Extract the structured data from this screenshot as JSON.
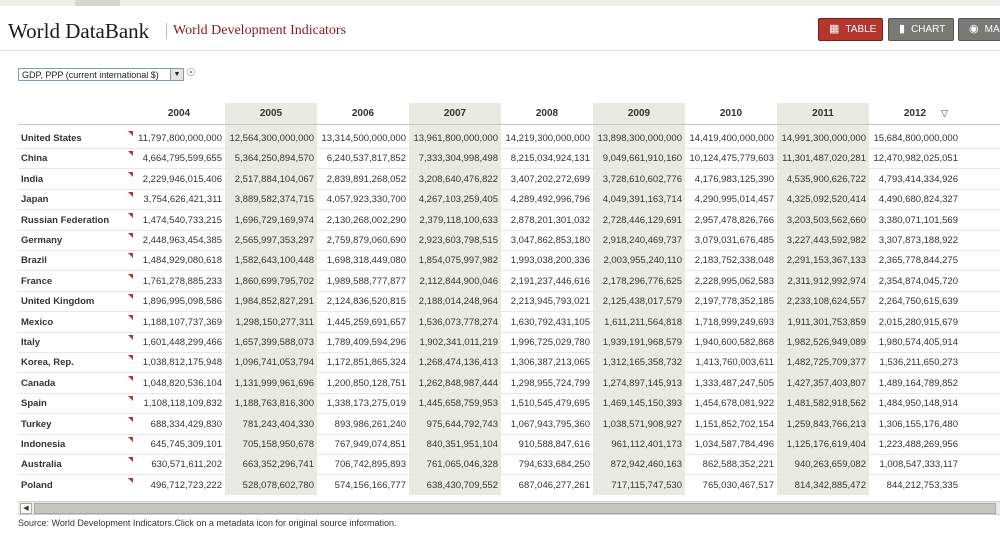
{
  "header": {
    "logo": "World DataBank",
    "database": "World Development Indicators",
    "buttons": {
      "table": "TABLE",
      "chart": "CHART",
      "map": "MA"
    }
  },
  "series": {
    "selected": "GDP, PPP (current international $)"
  },
  "table": {
    "years": [
      "2004",
      "2005",
      "2006",
      "2007",
      "2008",
      "2009",
      "2010",
      "2011",
      "2012"
    ],
    "rows": [
      {
        "country": "United States",
        "values": [
          "11,797,800,000,000",
          "12,564,300,000,000",
          "13,314,500,000,000",
          "13,961,800,000,000",
          "14,219,300,000,000",
          "13,898,300,000,000",
          "14,419,400,000,000",
          "14,991,300,000,000",
          "15,684,800,000,000"
        ]
      },
      {
        "country": "China",
        "values": [
          "4,664,795,599,655",
          "5,364,250,894,570",
          "6,240,537,817,852",
          "7,333,304,998,498",
          "8,215,034,924,131",
          "9,049,661,910,160",
          "10,124,475,779,603",
          "11,301,487,020,281",
          "12,470,982,025,051"
        ]
      },
      {
        "country": "India",
        "values": [
          "2,229,946,015,406",
          "2,517,884,104,067",
          "2,839,891,268,052",
          "3,208,640,476,822",
          "3,407,202,272,699",
          "3,728,610,602,776",
          "4,176,983,125,390",
          "4,535,900,626,722",
          "4,793,414,334,926"
        ]
      },
      {
        "country": "Japan",
        "values": [
          "3,754,626,421,311",
          "3,889,582,374,715",
          "4,057,923,330,700",
          "4,267,103,259,405",
          "4,289,492,996,796",
          "4,049,391,163,714",
          "4,290,995,014,457",
          "4,325,092,520,414",
          "4,490,680,824,327"
        ]
      },
      {
        "country": "Russian Federation",
        "values": [
          "1,474,540,733,215",
          "1,696,729,169,974",
          "2,130,268,002,290",
          "2,379,118,100,633",
          "2,878,201,301,032",
          "2,728,446,129,691",
          "2,957,478,826,766",
          "3,203,503,562,660",
          "3,380,071,101,569"
        ]
      },
      {
        "country": "Germany",
        "values": [
          "2,448,963,454,385",
          "2,565,997,353,297",
          "2,759,879,060,690",
          "2,923,603,798,515",
          "3,047,862,853,180",
          "2,918,240,469,737",
          "3,079,031,676,485",
          "3,227,443,592,982",
          "3,307,873,188,922"
        ]
      },
      {
        "country": "Brazil",
        "values": [
          "1,484,929,080,618",
          "1,582,643,100,448",
          "1,698,318,449,080",
          "1,854,075,997,982",
          "1,993,038,200,336",
          "2,003,955,240,110",
          "2,183,752,338,048",
          "2,291,153,367,133",
          "2,365,778,844,275"
        ]
      },
      {
        "country": "France",
        "values": [
          "1,761,278,885,233",
          "1,860,699,795,702",
          "1,989,588,777,877",
          "2,112,844,900,046",
          "2,191,237,446,616",
          "2,178,296,776,625",
          "2,228,995,062,583",
          "2,311,912,992,974",
          "2,354,874,045,720"
        ]
      },
      {
        "country": "United Kingdom",
        "values": [
          "1,896,995,098,586",
          "1,984,852,827,291",
          "2,124,836,520,815",
          "2,188,014,248,964",
          "2,213,945,793,021",
          "2,125,438,017,579",
          "2,197,778,352,185",
          "2,233,108,624,557",
          "2,264,750,615,639"
        ]
      },
      {
        "country": "Mexico",
        "values": [
          "1,188,107,737,369",
          "1,298,150,277,311",
          "1,445,259,691,657",
          "1,536,073,778,274",
          "1,630,792,431,105",
          "1,611,211,564,818",
          "1,718,999,249,693",
          "1,911,301,753,859",
          "2,015,280,915,679"
        ]
      },
      {
        "country": "Italy",
        "values": [
          "1,601,448,299,466",
          "1,657,399,588,073",
          "1,789,409,594,296",
          "1,902,341,011,219",
          "1,996,725,029,780",
          "1,939,191,968,579",
          "1,940,600,582,868",
          "1,982,526,949,089",
          "1,980,574,405,914"
        ]
      },
      {
        "country": "Korea, Rep.",
        "values": [
          "1,038,812,175,948",
          "1,096,741,053,794",
          "1,172,851,865,324",
          "1,268,474,136,413",
          "1,306,387,213,065",
          "1,312,165,358,732",
          "1,413,760,003,611",
          "1,482,725,709,377",
          "1,536,211,650,273"
        ]
      },
      {
        "country": "Canada",
        "values": [
          "1,048,820,536,104",
          "1,131,999,961,696",
          "1,200,850,128,751",
          "1,262,848,987,444",
          "1,298,955,724,799",
          "1,274,897,145,913",
          "1,333,487,247,505",
          "1,427,357,403,807",
          "1,489,164,789,852"
        ]
      },
      {
        "country": "Spain",
        "values": [
          "1,108,118,109,832",
          "1,188,763,816,300",
          "1,338,173,275,019",
          "1,445,658,759,953",
          "1,510,545,479,695",
          "1,469,145,150,393",
          "1,454,678,081,922",
          "1,481,582,918,562",
          "1,484,950,148,914"
        ]
      },
      {
        "country": "Turkey",
        "values": [
          "688,334,429,830",
          "781,243,404,330",
          "893,986,261,240",
          "975,644,792,743",
          "1,067,943,795,360",
          "1,038,571,908,927",
          "1,151,852,702,154",
          "1,259,843,766,213",
          "1,306,155,176,480"
        ]
      },
      {
        "country": "Indonesia",
        "values": [
          "645,745,309,101",
          "705,158,950,678",
          "767,949,074,851",
          "840,351,951,104",
          "910,588,847,616",
          "961,112,401,173",
          "1,034,587,784,496",
          "1,125,176,619,404",
          "1,223,488,269,956"
        ]
      },
      {
        "country": "Australia",
        "values": [
          "630,571,611,202",
          "663,352,296,741",
          "706,742,895,893",
          "761,065,046,328",
          "794,633,684,250",
          "872,942,460,163",
          "862,588,352,221",
          "940,263,659,082",
          "1,008,547,333,117"
        ]
      },
      {
        "country": "Poland",
        "values": [
          "496,712,723,222",
          "528,078,602,780",
          "574,156,166,777",
          "638,430,709,552",
          "687,046,277,261",
          "717,115,747,530",
          "765,030,467,517",
          "814,342,885,472",
          "844,212,753,335"
        ]
      }
    ]
  },
  "source": "Source: World Development Indicators.Click on a metadata icon for original source information.",
  "colors": {
    "accent": "#b4362e",
    "title": "#8a1a1a",
    "shade": "#eaeae4"
  }
}
